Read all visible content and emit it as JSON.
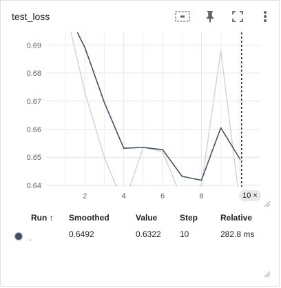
{
  "card": {
    "title": "test_loss",
    "icons": [
      "fit-domain-icon",
      "pin-icon",
      "fullscreen-icon",
      "more-vert-icon"
    ]
  },
  "chart_data": {
    "type": "line",
    "title": "",
    "xlabel": "",
    "ylabel": "",
    "x_ticks": [
      "2",
      "4",
      "6",
      "8",
      "10"
    ],
    "y_ticks": [
      "0.64",
      "0.65",
      "0.66",
      "0.67",
      "0.68",
      "0.69"
    ],
    "xlim": [
      0,
      11
    ],
    "ylim": [
      0.6395,
      0.6945
    ],
    "grid": true,
    "series": [
      {
        "role": "raw",
        "color": "#cfd2da",
        "x": [
          1,
          2,
          3,
          4,
          5,
          6,
          7,
          8,
          9,
          10
        ],
        "y": [
          0.703,
          0.673,
          0.65,
          0.633,
          0.6535,
          0.652,
          0.635,
          0.64,
          0.688,
          0.6322
        ]
      },
      {
        "role": "smoothed",
        "color": "#425066",
        "x": [
          1,
          2,
          3,
          4,
          5,
          6,
          7,
          8,
          9,
          10
        ],
        "y": [
          0.703,
          0.689,
          0.6695,
          0.6532,
          0.6535,
          0.6527,
          0.6432,
          0.6418,
          0.6605,
          0.6492
        ]
      }
    ],
    "cursor_step": 10
  },
  "step_badge": {
    "label": "10",
    "close_glyph": "×"
  },
  "table": {
    "headers": {
      "run": "Run ↑",
      "smoothed": "Smoothed",
      "value": "Value",
      "step": "Step",
      "relative": "Relative"
    },
    "rows": [
      {
        "run": ".",
        "color": "#425066",
        "smoothed": "0.6492",
        "value": "0.6322",
        "step": "10",
        "relative": "282.8 ms"
      }
    ]
  }
}
